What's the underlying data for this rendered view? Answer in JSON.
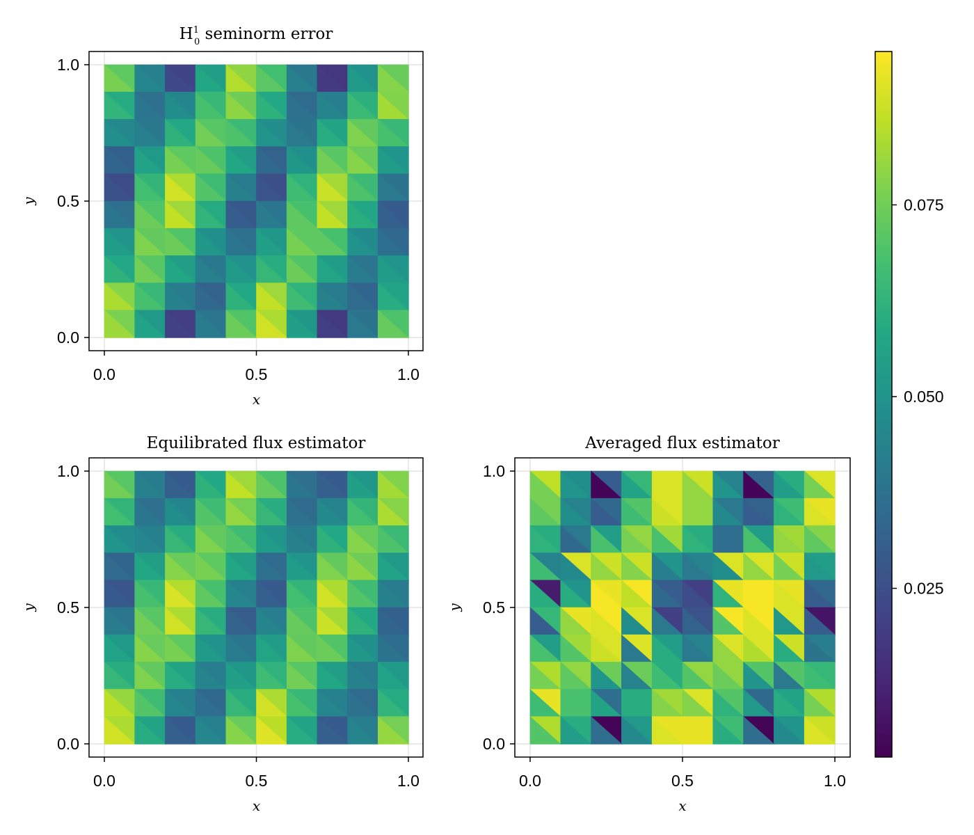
{
  "chart_data": [
    {
      "type": "heatmap",
      "title": "H¹₀ seminorm error",
      "title_base": "H",
      "title_sup": "1",
      "title_sub": "0",
      "title_rest": " seminorm error",
      "xlabel": "x",
      "ylabel": "y",
      "xlim": [
        0,
        1
      ],
      "ylim": [
        0,
        1
      ],
      "xticks": [
        "0.0",
        "0.5",
        "1.0"
      ],
      "yticks": [
        "0.0",
        "0.5",
        "1.0"
      ],
      "grid": true,
      "mesh": "10x10 squares, each split into two triangles along the top-left to bottom-right diagonal",
      "rows_top_to_bottom": [
        [
          0.074,
          0.044,
          0.022,
          0.056,
          0.082,
          0.069,
          0.041,
          0.018,
          0.051,
          0.076
        ],
        [
          0.061,
          0.038,
          0.046,
          0.066,
          0.077,
          0.06,
          0.036,
          0.043,
          0.063,
          0.08
        ],
        [
          0.047,
          0.041,
          0.06,
          0.073,
          0.067,
          0.049,
          0.039,
          0.058,
          0.075,
          0.066
        ],
        [
          0.032,
          0.054,
          0.074,
          0.071,
          0.056,
          0.033,
          0.05,
          0.073,
          0.076,
          0.052
        ],
        [
          0.025,
          0.065,
          0.086,
          0.068,
          0.042,
          0.026,
          0.064,
          0.085,
          0.067,
          0.039
        ],
        [
          0.038,
          0.072,
          0.084,
          0.061,
          0.029,
          0.04,
          0.07,
          0.084,
          0.059,
          0.03
        ],
        [
          0.052,
          0.075,
          0.072,
          0.05,
          0.038,
          0.053,
          0.074,
          0.07,
          0.048,
          0.035
        ],
        [
          0.06,
          0.073,
          0.056,
          0.041,
          0.051,
          0.062,
          0.072,
          0.055,
          0.04,
          0.052
        ],
        [
          0.081,
          0.066,
          0.042,
          0.033,
          0.06,
          0.084,
          0.064,
          0.042,
          0.034,
          0.058
        ],
        [
          0.079,
          0.054,
          0.02,
          0.04,
          0.072,
          0.086,
          0.053,
          0.019,
          0.039,
          0.071
        ]
      ]
    },
    {
      "type": "heatmap",
      "title": "Equilibrated flux estimator",
      "xlabel": "x",
      "ylabel": "y",
      "xlim": [
        0,
        1
      ],
      "ylim": [
        0,
        1
      ],
      "xticks": [
        "0.0",
        "0.5",
        "1.0"
      ],
      "yticks": [
        "0.0",
        "0.5",
        "1.0"
      ],
      "grid": true,
      "mesh": "10x10 squares, each split into two triangles along the top-left to bottom-right diagonal",
      "rows_top_to_bottom": [
        [
          0.073,
          0.042,
          0.03,
          0.06,
          0.084,
          0.071,
          0.038,
          0.03,
          0.053,
          0.08
        ],
        [
          0.065,
          0.038,
          0.046,
          0.068,
          0.078,
          0.062,
          0.036,
          0.045,
          0.065,
          0.081
        ],
        [
          0.049,
          0.044,
          0.062,
          0.075,
          0.068,
          0.052,
          0.042,
          0.06,
          0.076,
          0.067
        ],
        [
          0.034,
          0.056,
          0.076,
          0.074,
          0.056,
          0.036,
          0.052,
          0.075,
          0.077,
          0.054
        ],
        [
          0.028,
          0.066,
          0.087,
          0.07,
          0.044,
          0.03,
          0.065,
          0.086,
          0.068,
          0.042
        ],
        [
          0.04,
          0.073,
          0.086,
          0.062,
          0.031,
          0.043,
          0.071,
          0.085,
          0.06,
          0.032
        ],
        [
          0.054,
          0.076,
          0.074,
          0.051,
          0.04,
          0.055,
          0.075,
          0.072,
          0.05,
          0.037
        ],
        [
          0.062,
          0.075,
          0.058,
          0.043,
          0.053,
          0.064,
          0.073,
          0.056,
          0.042,
          0.054
        ],
        [
          0.083,
          0.068,
          0.044,
          0.035,
          0.062,
          0.086,
          0.066,
          0.044,
          0.036,
          0.061
        ],
        [
          0.086,
          0.058,
          0.03,
          0.044,
          0.076,
          0.088,
          0.058,
          0.03,
          0.043,
          0.078
        ]
      ]
    },
    {
      "type": "heatmap",
      "title": "Averaged flux estimator",
      "xlabel": "x",
      "ylabel": "y",
      "xlim": [
        0,
        1
      ],
      "ylim": [
        0,
        1
      ],
      "xticks": [
        "0.0",
        "0.5",
        "1.0"
      ],
      "yticks": [
        "0.0",
        "0.5",
        "1.0"
      ],
      "grid": true,
      "mesh": "10x10 squares, each split into two triangles along the top-left to bottom-right diagonal",
      "upper_triangles_top_to_bottom": [
        [
          0.086,
          0.048,
          0.03,
          0.064,
          0.09,
          0.088,
          0.044,
          0.032,
          0.06,
          0.09
        ],
        [
          0.076,
          0.044,
          0.034,
          0.07,
          0.09,
          0.08,
          0.04,
          0.032,
          0.066,
          0.092
        ],
        [
          0.06,
          0.04,
          0.054,
          0.08,
          0.082,
          0.06,
          0.036,
          0.054,
          0.082,
          0.078
        ],
        [
          0.044,
          0.09,
          0.088,
          0.088,
          0.05,
          0.044,
          0.09,
          0.09,
          0.088,
          0.054
        ],
        [
          0.01,
          0.05,
          0.092,
          0.094,
          0.03,
          0.02,
          0.092,
          0.094,
          0.092,
          0.034
        ],
        [
          0.064,
          0.092,
          0.094,
          0.09,
          0.02,
          0.026,
          0.094,
          0.094,
          0.09,
          0.008
        ],
        [
          0.054,
          0.082,
          0.09,
          0.09,
          0.054,
          0.044,
          0.09,
          0.09,
          0.088,
          0.042
        ],
        [
          0.084,
          0.08,
          0.074,
          0.074,
          0.06,
          0.08,
          0.08,
          0.07,
          0.07,
          0.064
        ],
        [
          0.092,
          0.068,
          0.036,
          0.06,
          0.082,
          0.09,
          0.07,
          0.034,
          0.056,
          0.084
        ],
        [
          0.084,
          0.06,
          0.004,
          0.052,
          0.092,
          0.092,
          0.066,
          0.004,
          0.05,
          0.088
        ]
      ],
      "lower_triangles_top_to_bottom": [
        [
          0.076,
          0.05,
          0.004,
          0.056,
          0.09,
          0.08,
          0.05,
          0.004,
          0.054,
          0.076
        ],
        [
          0.072,
          0.048,
          0.03,
          0.066,
          0.088,
          0.08,
          0.046,
          0.03,
          0.062,
          0.09
        ],
        [
          0.062,
          0.034,
          0.068,
          0.076,
          0.068,
          0.062,
          0.036,
          0.068,
          0.08,
          0.072
        ],
        [
          0.066,
          0.046,
          0.08,
          0.078,
          0.042,
          0.04,
          0.048,
          0.08,
          0.076,
          0.052
        ],
        [
          0.06,
          0.06,
          0.094,
          0.086,
          0.034,
          0.024,
          0.062,
          0.094,
          0.09,
          0.03
        ],
        [
          0.03,
          0.08,
          0.09,
          0.048,
          0.04,
          0.032,
          0.07,
          0.09,
          0.052,
          0.03
        ],
        [
          0.068,
          0.07,
          0.088,
          0.04,
          0.06,
          0.04,
          0.08,
          0.084,
          0.06,
          0.038
        ],
        [
          0.076,
          0.072,
          0.05,
          0.044,
          0.066,
          0.07,
          0.074,
          0.05,
          0.04,
          0.066
        ],
        [
          0.066,
          0.068,
          0.056,
          0.06,
          0.078,
          0.078,
          0.062,
          0.052,
          0.06,
          0.076
        ],
        [
          0.07,
          0.054,
          0.036,
          0.046,
          0.09,
          0.092,
          0.06,
          0.036,
          0.046,
          0.09
        ]
      ]
    },
    {
      "type": "colorbar",
      "colormap": "viridis",
      "range": [
        0.003,
        0.095
      ],
      "ticks": [
        0.025,
        0.05,
        0.075
      ],
      "tick_labels": [
        "0.025",
        "0.050",
        "0.075"
      ]
    }
  ]
}
